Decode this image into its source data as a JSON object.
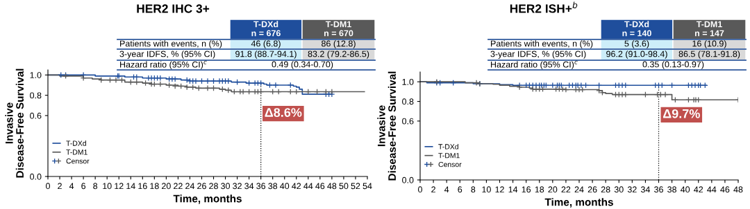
{
  "chart_data": [
    {
      "type": "step",
      "title": "HER2 IHC 3+",
      "xlabel": "Time, months",
      "ylabel": "Invasive\nDisease-Free Survival",
      "xlim": [
        0,
        54
      ],
      "xticks": [
        0,
        2,
        4,
        6,
        8,
        10,
        12,
        14,
        16,
        18,
        20,
        22,
        24,
        26,
        28,
        30,
        32,
        34,
        36,
        38,
        40,
        42,
        44,
        46,
        48,
        50,
        52,
        54
      ],
      "ylim": [
        0,
        1.05
      ],
      "yticks": [
        {
          "value": 0,
          "label": "0.0"
        },
        {
          "value": 0.6,
          "label": "0.6"
        },
        {
          "value": 0.8,
          "label": "0.8"
        },
        {
          "value": 1,
          "label": "1.0"
        }
      ],
      "legend": "lower left",
      "grid": false,
      "series": [
        {
          "name": "T-DXd",
          "color": "#1f4e9c",
          "marker": "none",
          "x": [
            0,
            8,
            13,
            16,
            20,
            22.5,
            24,
            31,
            33.5,
            36.5,
            37,
            41.5,
            42,
            42.5,
            43,
            48
          ],
          "values": [
            1.0,
            0.99,
            0.98,
            0.97,
            0.96,
            0.95,
            0.94,
            0.93,
            0.92,
            0.91,
            0.9,
            0.89,
            0.88,
            0.86,
            0.81,
            0.81
          ]
        },
        {
          "name": "T-DM1",
          "color": "#595959",
          "marker": "none",
          "x": [
            0,
            2,
            6,
            7.5,
            9,
            13,
            16,
            17.5,
            20,
            22,
            23.5,
            25,
            29,
            30,
            31,
            53.5
          ],
          "values": [
            1.0,
            0.99,
            0.97,
            0.96,
            0.95,
            0.93,
            0.92,
            0.91,
            0.9,
            0.89,
            0.88,
            0.87,
            0.86,
            0.85,
            0.835,
            0.835
          ]
        },
        {
          "name": "Censor",
          "type": "scatter",
          "marker": "cross",
          "x": [
            2.2,
            3,
            6,
            11.8,
            12,
            14.5,
            15,
            17,
            17.5,
            18,
            18.5,
            19,
            20.5,
            21,
            21.5,
            23.5,
            24,
            24.5,
            25,
            26,
            27,
            28,
            29,
            29.5,
            30,
            30.5,
            32,
            34,
            35,
            35.5,
            36,
            37.5,
            38.5,
            41,
            47,
            47.5,
            48,
            3,
            6,
            9,
            10.5,
            11.5,
            12.5,
            14,
            15,
            16.5,
            17.5,
            18,
            19,
            20.5,
            21.5,
            22.5,
            23.5,
            24.5,
            25.5,
            27,
            28,
            29.5,
            30.5,
            31.5,
            32.5,
            33,
            34,
            35,
            35.5,
            36,
            38,
            39,
            41,
            42,
            44,
            45.5,
            47,
            48
          ],
          "values": [
            1.0,
            1.0,
            1.0,
            0.99,
            0.99,
            0.98,
            0.98,
            0.97,
            0.97,
            0.97,
            0.97,
            0.97,
            0.96,
            0.96,
            0.96,
            0.95,
            0.94,
            0.94,
            0.94,
            0.94,
            0.94,
            0.94,
            0.94,
            0.94,
            0.94,
            0.94,
            0.93,
            0.92,
            0.92,
            0.92,
            0.92,
            0.9,
            0.9,
            0.9,
            0.81,
            0.81,
            0.81,
            0.99,
            0.97,
            0.95,
            0.95,
            0.95,
            0.95,
            0.93,
            0.93,
            0.92,
            0.91,
            0.91,
            0.91,
            0.9,
            0.89,
            0.89,
            0.88,
            0.88,
            0.87,
            0.87,
            0.87,
            0.86,
            0.85,
            0.835,
            0.835,
            0.835,
            0.835,
            0.835,
            0.835,
            0.835,
            0.835,
            0.835,
            0.835,
            0.835,
            0.835,
            0.835,
            0.835,
            0.835
          ],
          "colors": [
            "#1f4e9c",
            "#1f4e9c",
            "#1f4e9c",
            "#1f4e9c",
            "#1f4e9c",
            "#1f4e9c",
            "#1f4e9c",
            "#1f4e9c",
            "#1f4e9c",
            "#1f4e9c",
            "#1f4e9c",
            "#1f4e9c",
            "#1f4e9c",
            "#1f4e9c",
            "#1f4e9c",
            "#1f4e9c",
            "#1f4e9c",
            "#1f4e9c",
            "#1f4e9c",
            "#1f4e9c",
            "#1f4e9c",
            "#1f4e9c",
            "#1f4e9c",
            "#1f4e9c",
            "#1f4e9c",
            "#1f4e9c",
            "#1f4e9c",
            "#1f4e9c",
            "#1f4e9c",
            "#1f4e9c",
            "#1f4e9c",
            "#1f4e9c",
            "#1f4e9c",
            "#1f4e9c",
            "#1f4e9c",
            "#1f4e9c",
            "#1f4e9c",
            "#595959",
            "#595959",
            "#595959",
            "#595959",
            "#595959",
            "#595959",
            "#595959",
            "#595959",
            "#595959",
            "#595959",
            "#595959",
            "#595959",
            "#595959",
            "#595959",
            "#595959",
            "#595959",
            "#595959",
            "#595959",
            "#595959",
            "#595959",
            "#595959",
            "#595959",
            "#595959",
            "#595959",
            "#595959",
            "#595959",
            "#595959",
            "#595959",
            "#595959",
            "#595959",
            "#595959",
            "#595959",
            "#595959",
            "#595959",
            "#595959",
            "#595959",
            "#595959"
          ]
        }
      ],
      "ref_lines": [
        {
          "axis": "x",
          "value": 36,
          "label": "Δ8.6%",
          "color": "#000000",
          "line_style": "dotted"
        }
      ],
      "annotations": [
        "T-DXd\nn = 676",
        "T-DM1\nn = 670",
        "Patients with events, n (%)",
        "46 (6.8)",
        "86 (12.8)",
        "3-year IDFS, % (95% CI)",
        "91.8 (88.7-94.1)",
        "83.2 (79.2-86.5)",
        "Hazard ratio (95% CI)$^{c}$",
        "0.49 (0.34-0.70)"
      ]
    },
    {
      "type": "step",
      "title": "HER2 ISH+$^{b}$",
      "xlabel": "Time, months",
      "ylabel": "Invasive\nDisease-Free Survival",
      "xlim": [
        0,
        48
      ],
      "xticks": [
        0,
        2,
        4,
        6,
        8,
        10,
        12,
        14,
        16,
        18,
        20,
        22,
        24,
        26,
        28,
        30,
        32,
        34,
        36,
        38,
        40,
        42,
        44,
        46,
        48
      ],
      "ylim": [
        0,
        1.1
      ],
      "yticks": [
        {
          "value": 0,
          "label": "0.0"
        },
        {
          "value": 0.6,
          "label": "0.6"
        },
        {
          "value": 0.8,
          "label": "0.8"
        },
        {
          "value": 1,
          "label": "1.0"
        }
      ],
      "legend": "lower left",
      "grid": false,
      "series": [
        {
          "name": "T-DXd",
          "color": "#1f4e9c",
          "marker": "none",
          "x": [
            0,
            1,
            8,
            12,
            14,
            43.2
          ],
          "values": [
            1.0,
            0.99,
            0.98,
            0.97,
            0.964,
            0.964
          ]
        },
        {
          "name": "T-DM1",
          "color": "#595959",
          "marker": "none",
          "x": [
            0,
            6.8,
            9,
            11,
            12,
            13.5,
            15,
            16.5,
            17,
            22,
            27,
            27.5,
            28,
            29,
            38,
            48
          ],
          "values": [
            1.0,
            0.99,
            0.98,
            0.975,
            0.965,
            0.955,
            0.945,
            0.935,
            0.925,
            0.92,
            0.91,
            0.89,
            0.88,
            0.87,
            0.816,
            0.816
          ]
        },
        {
          "name": "Censor",
          "type": "scatter",
          "marker": "cross",
          "x": [
            2.5,
            3,
            5,
            9,
            15,
            16,
            16.5,
            17,
            17.5,
            18,
            18.3,
            18.7,
            19,
            20,
            20.7,
            21,
            21.3,
            22.5,
            23,
            23.5,
            23.8,
            24.3,
            25,
            27,
            29.5,
            30,
            30.5,
            31,
            35.5,
            36,
            36.5,
            38,
            40.5,
            41,
            41.5,
            42,
            42.3,
            43,
            2.5,
            8.5,
            9,
            15,
            17,
            17.5,
            18,
            18.5,
            20.5,
            21,
            21.5,
            22,
            23.5,
            24,
            24.5,
            27,
            27.5,
            29.5,
            30,
            30.5,
            31,
            34,
            35.8,
            36.3,
            37,
            38.5,
            40.5,
            41.3,
            41.6,
            42,
            48
          ],
          "values": [
            0.99,
            0.99,
            0.99,
            0.98,
            0.964,
            0.964,
            0.964,
            0.964,
            0.964,
            0.964,
            0.964,
            0.964,
            0.964,
            0.964,
            0.964,
            0.964,
            0.964,
            0.964,
            0.964,
            0.964,
            0.964,
            0.964,
            0.964,
            0.964,
            0.964,
            0.964,
            0.964,
            0.964,
            0.964,
            0.964,
            0.964,
            0.964,
            0.964,
            0.964,
            0.964,
            0.964,
            0.964,
            0.964,
            1.0,
            0.99,
            0.98,
            0.945,
            0.925,
            0.925,
            0.925,
            0.925,
            0.925,
            0.925,
            0.925,
            0.92,
            0.92,
            0.92,
            0.92,
            0.91,
            0.89,
            0.87,
            0.87,
            0.87,
            0.87,
            0.87,
            0.87,
            0.87,
            0.87,
            0.816,
            0.816,
            0.816,
            0.816,
            0.816,
            0.816
          ],
          "colors": [
            "#1f4e9c",
            "#1f4e9c",
            "#1f4e9c",
            "#1f4e9c",
            "#1f4e9c",
            "#1f4e9c",
            "#1f4e9c",
            "#1f4e9c",
            "#1f4e9c",
            "#1f4e9c",
            "#1f4e9c",
            "#1f4e9c",
            "#1f4e9c",
            "#1f4e9c",
            "#1f4e9c",
            "#1f4e9c",
            "#1f4e9c",
            "#1f4e9c",
            "#1f4e9c",
            "#1f4e9c",
            "#1f4e9c",
            "#1f4e9c",
            "#1f4e9c",
            "#1f4e9c",
            "#1f4e9c",
            "#1f4e9c",
            "#1f4e9c",
            "#1f4e9c",
            "#1f4e9c",
            "#1f4e9c",
            "#1f4e9c",
            "#1f4e9c",
            "#1f4e9c",
            "#1f4e9c",
            "#1f4e9c",
            "#1f4e9c",
            "#1f4e9c",
            "#1f4e9c",
            "#595959",
            "#595959",
            "#595959",
            "#595959",
            "#595959",
            "#595959",
            "#595959",
            "#595959",
            "#595959",
            "#595959",
            "#595959",
            "#595959",
            "#595959",
            "#595959",
            "#595959",
            "#595959",
            "#595959",
            "#595959",
            "#595959",
            "#595959",
            "#595959",
            "#595959",
            "#595959",
            "#595959",
            "#595959",
            "#595959",
            "#595959",
            "#595959",
            "#595959",
            "#595959",
            "#595959"
          ]
        }
      ],
      "ref_lines": [
        {
          "axis": "x",
          "value": 36,
          "label": "Δ9.7%",
          "color": "#000000",
          "line_style": "dotted"
        }
      ],
      "annotations": [
        "T-DXd\nn = 140",
        "T-DM1\nn = 147",
        "Patients with events, n (%)",
        "5 (3.6)",
        "16 (10.9)",
        "3-year IDFS, % (95% CI)",
        "96.2 (91.0-98.4)",
        "86.5 (78.1-91.8)",
        "Hazard ratio (95% CI)$^{c}$",
        "0.35 (0.13-0.97)"
      ]
    }
  ]
}
